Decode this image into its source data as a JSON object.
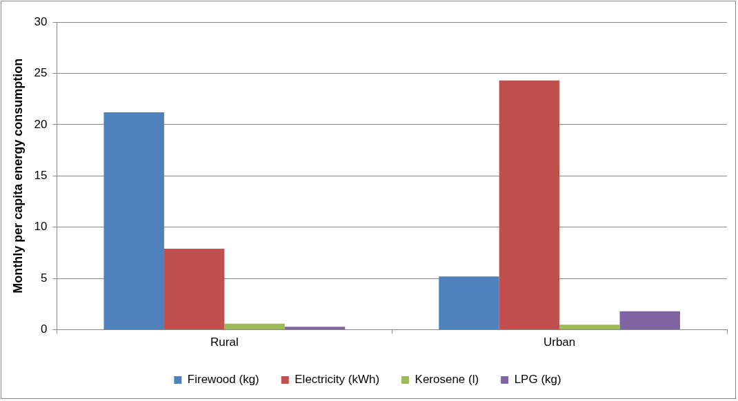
{
  "chart_data": {
    "type": "bar",
    "ylabel": "Monthly per capita energy consumption",
    "categories": [
      "Rural",
      "Urban"
    ],
    "series": [
      {
        "name": "Firewood (kg)",
        "color": "#4f81bd",
        "values": [
          21.2,
          5.2
        ]
      },
      {
        "name": "Electricity (kWh)",
        "color": "#c0504d",
        "values": [
          7.9,
          24.3
        ]
      },
      {
        "name": "Kerosene (l)",
        "color": "#9bbb59",
        "values": [
          0.6,
          0.5
        ]
      },
      {
        "name": "LPG (kg)",
        "color": "#8064a2",
        "values": [
          0.3,
          1.8
        ]
      }
    ],
    "ylim": [
      0,
      30
    ],
    "yticks": [
      0,
      5,
      10,
      15,
      20,
      25,
      30
    ],
    "grid": "y",
    "legend": "bottom"
  }
}
